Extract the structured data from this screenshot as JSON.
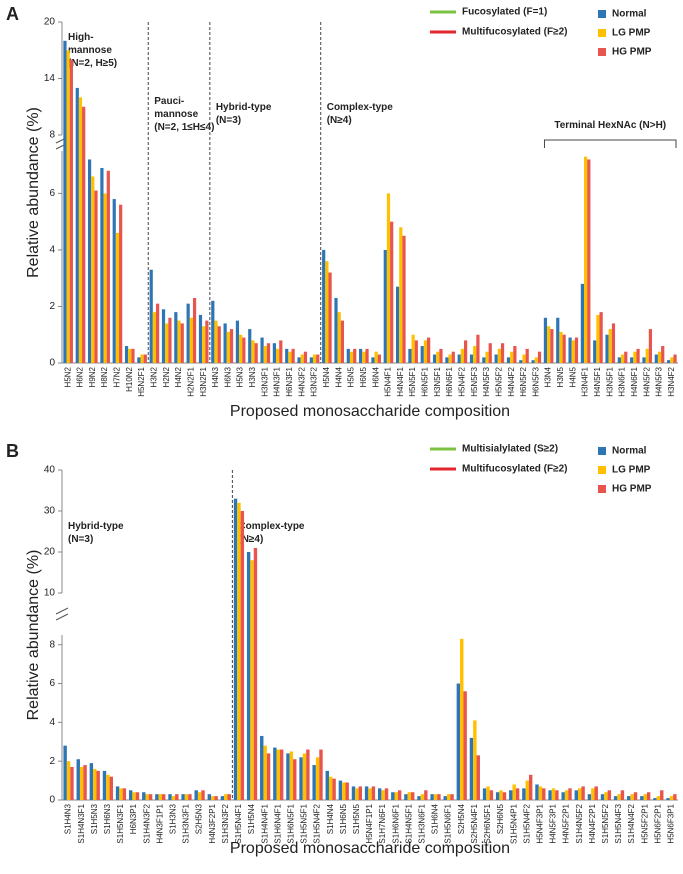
{
  "chart_data": [
    {
      "type": "bar",
      "panel": "A",
      "y_label": "Relative abundance (%)",
      "x_label": "Proposed monosaccharide composition",
      "segments": [
        {
          "ylim": [
            0,
            7.5
          ],
          "yticks": [
            0,
            2,
            4,
            6
          ]
        },
        {
          "ylim": [
            8,
            20
          ],
          "yticks": [
            8,
            14,
            20
          ]
        }
      ],
      "legend_lines": [
        {
          "name": "Fucosylated (F=1)",
          "color": "#7cc242"
        },
        {
          "name": "Multifucosylated (F≥2)",
          "color": "#e3262c"
        }
      ],
      "legend": "top-right",
      "groups": [
        {
          "lines": [
            "High-",
            "mannose",
            "(N=2, H≥5)"
          ],
          "categories": [
            "H5N2",
            "H6N2",
            "H9N2",
            "H8N2",
            "H7N2",
            "H10N2",
            "H5N2F1"
          ]
        },
        {
          "lines": [
            "Pauci-",
            "mannose",
            "(N=2, 1≤H≤4)"
          ],
          "categories": [
            "H3N2",
            "H2N2",
            "H4N2",
            "H2N2F1",
            "H3N2F1"
          ]
        },
        {
          "lines": [
            "Hybrid-type",
            "(N=3)"
          ],
          "categories": [
            "H4N3",
            "H6N3",
            "H5N3",
            "H3N3",
            "H3N3F1",
            "H4N3F1",
            "H6N3F1",
            "H4N3F2",
            "H3N3F2"
          ]
        },
        {
          "lines": [
            "Complex-type",
            "(N≥4)"
          ],
          "categories": [
            "H5N4",
            "H4N4",
            "H5N5",
            "H6N5",
            "H6N4",
            "H5N4F1",
            "H4N4F1",
            "H5N5F1",
            "H6N5F1",
            "H3N5F1",
            "H6N6F1",
            "H5N4F2",
            "H5N5F3",
            "H4N5F3",
            "H5N5F2",
            "H4N4F2",
            "H6N5F2",
            "H6N5F3"
          ]
        },
        {
          "lines": [
            "Terminal HexNAc (N>H)"
          ],
          "bracket": true,
          "categories": [
            "H3N4",
            "H3N5",
            "H4N5",
            "H3N4F1",
            "H4N5F1",
            "H3N5F1",
            "H3N6F1",
            "H4N6F1",
            "H4N5F2",
            "H4N5F3",
            "H3N4F2"
          ]
        }
      ],
      "series": [
        {
          "name": "Normal",
          "color": "#2e75b6",
          "values": [
            18,
            13,
            7.2,
            6.9,
            5.8,
            0.6,
            0.2,
            3.3,
            1.9,
            1.8,
            2.1,
            1.7,
            2.2,
            1.4,
            1.5,
            1.2,
            0.9,
            0.7,
            0.5,
            0.2,
            0.2,
            4.0,
            2.3,
            0.5,
            0.5,
            0.2,
            4.0,
            2.7,
            0.5,
            0.6,
            0.3,
            0.2,
            0.3,
            0.3,
            0.2,
            0.3,
            0.2,
            0.1,
            0.1,
            1.6,
            1.6,
            0.9,
            2.8,
            0.8,
            1.0,
            0.2,
            0.2,
            0.2,
            0.3,
            0.1
          ]
        },
        {
          "name": "LG PMP",
          "color": "#ffc000",
          "values": [
            17,
            12,
            6.6,
            6.0,
            4.6,
            0.5,
            0.3,
            1.8,
            1.4,
            1.5,
            1.6,
            1.3,
            1.5,
            1.1,
            1.0,
            0.8,
            0.6,
            0.5,
            0.4,
            0.3,
            0.3,
            3.6,
            1.8,
            0.4,
            0.4,
            0.4,
            6.0,
            4.8,
            1.0,
            0.8,
            0.4,
            0.3,
            0.5,
            0.6,
            0.4,
            0.5,
            0.4,
            0.3,
            0.2,
            1.3,
            1.1,
            0.8,
            7.3,
            1.7,
            1.2,
            0.3,
            0.4,
            0.5,
            0.4,
            0.2
          ]
        },
        {
          "name": "HG PMP",
          "color": "#e8544e",
          "values": [
            16,
            11,
            6.1,
            6.8,
            5.6,
            0.5,
            0.3,
            2.1,
            1.6,
            1.4,
            2.3,
            1.5,
            1.3,
            1.2,
            0.9,
            0.7,
            0.7,
            0.8,
            0.5,
            0.4,
            0.3,
            3.2,
            1.5,
            0.5,
            0.5,
            0.3,
            5.0,
            4.5,
            0.8,
            0.9,
            0.5,
            0.4,
            0.8,
            1.0,
            0.7,
            0.7,
            0.6,
            0.5,
            0.4,
            1.2,
            1.0,
            0.9,
            7.2,
            1.8,
            1.4,
            0.4,
            0.5,
            1.2,
            0.6,
            0.3
          ]
        }
      ]
    },
    {
      "type": "bar",
      "panel": "B",
      "y_label": "Relative abundance (%)",
      "x_label": "Proposed monosaccharide composition",
      "segments": [
        {
          "ylim": [
            0,
            8.5
          ],
          "yticks": [
            0,
            2,
            4,
            6,
            8
          ]
        },
        {
          "ylim": [
            10,
            40
          ],
          "yticks": [
            10,
            20,
            30,
            40
          ]
        }
      ],
      "legend_lines": [
        {
          "name": "Multisialylated (S≥2)",
          "color": "#7cc242"
        },
        {
          "name": "Multifucosylated (F≥2)",
          "color": "#e3262c"
        }
      ],
      "legend": "top-right",
      "groups": [
        {
          "lines": [
            "Hybrid-type",
            "(N=3)"
          ],
          "categories": [
            "S1H4N3",
            "S1H4N3F1",
            "S1H5N3",
            "S1H6N3",
            "S1H5N3F1",
            "H6N3P1",
            "S1H4N3F2",
            "H4N3F1P1",
            "S1H3N3",
            "S1H3N3F1",
            "S2H5N3",
            "H4N3F2P1",
            "S1H3N3F2"
          ]
        },
        {
          "lines": [
            "Complex-type",
            "(N≥4)"
          ],
          "categories": [
            "S1H5N4F1",
            "S1H5N4",
            "S1H4N4F1",
            "S1H6N4F1",
            "S1H6N5F1",
            "S1H5N5F1",
            "S1H5N4F2",
            "S1H4N4",
            "S1H6N5",
            "S1H5N5",
            "H5N4F1P1",
            "S1H7N6F1",
            "S1H6N6F1",
            "S1H4N5F1",
            "S1H3N6F1",
            "S1H6N4",
            "S1H5N6F1",
            "S2H5N4",
            "S2H5N4F1",
            "S2H6N5F1",
            "S2H6N5",
            "S1H5N4P1",
            "S1H5N4F2",
            "H5N4F3P1",
            "H4N5F3P1",
            "H4N5F2P1",
            "S1H4N5F2",
            "H4N4F2P1",
            "S1H5N5F2",
            "S1H5N4F3",
            "S1H4N4F2",
            "H5N5F2P1",
            "H5N6F2P1",
            "H5N6F3P1"
          ]
        }
      ],
      "series": [
        {
          "name": "Normal",
          "color": "#2e75b6",
          "values": [
            2.8,
            2.1,
            1.9,
            1.5,
            0.7,
            0.5,
            0.4,
            0.3,
            0.3,
            0.3,
            0.5,
            0.3,
            0.2,
            33,
            20,
            3.3,
            2.7,
            2.4,
            2.2,
            1.8,
            1.5,
            1.0,
            0.7,
            0.7,
            0.6,
            0.4,
            0.3,
            0.2,
            0.3,
            0.2,
            6.0,
            3.2,
            0.6,
            0.4,
            0.5,
            0.6,
            0.8,
            0.5,
            0.4,
            0.5,
            0.3,
            0.3,
            0.2,
            0.2,
            0.2,
            0.1,
            0.1
          ]
        },
        {
          "name": "LG PMP",
          "color": "#ffc000",
          "values": [
            2.0,
            1.7,
            1.6,
            1.3,
            0.6,
            0.4,
            0.3,
            0.3,
            0.2,
            0.3,
            0.4,
            0.2,
            0.3,
            32,
            18,
            2.8,
            2.6,
            2.5,
            2.4,
            2.2,
            1.2,
            0.9,
            0.6,
            0.6,
            0.5,
            0.4,
            0.4,
            0.3,
            0.3,
            0.3,
            8.3,
            4.1,
            0.7,
            0.5,
            0.8,
            1.0,
            0.7,
            0.6,
            0.5,
            0.6,
            0.6,
            0.4,
            0.3,
            0.3,
            0.3,
            0.2,
            0.2
          ]
        },
        {
          "name": "HG PMP",
          "color": "#e8544e",
          "values": [
            1.7,
            1.8,
            1.5,
            1.2,
            0.6,
            0.4,
            0.3,
            0.3,
            0.3,
            0.3,
            0.5,
            0.2,
            0.3,
            30,
            21,
            2.4,
            2.6,
            2.1,
            2.6,
            2.6,
            1.1,
            0.9,
            0.7,
            0.7,
            0.6,
            0.5,
            0.4,
            0.5,
            0.3,
            0.3,
            5.6,
            2.3,
            0.5,
            0.4,
            0.6,
            1.3,
            0.6,
            0.5,
            0.6,
            0.7,
            0.7,
            0.5,
            0.5,
            0.4,
            0.4,
            0.5,
            0.3
          ]
        }
      ]
    }
  ]
}
